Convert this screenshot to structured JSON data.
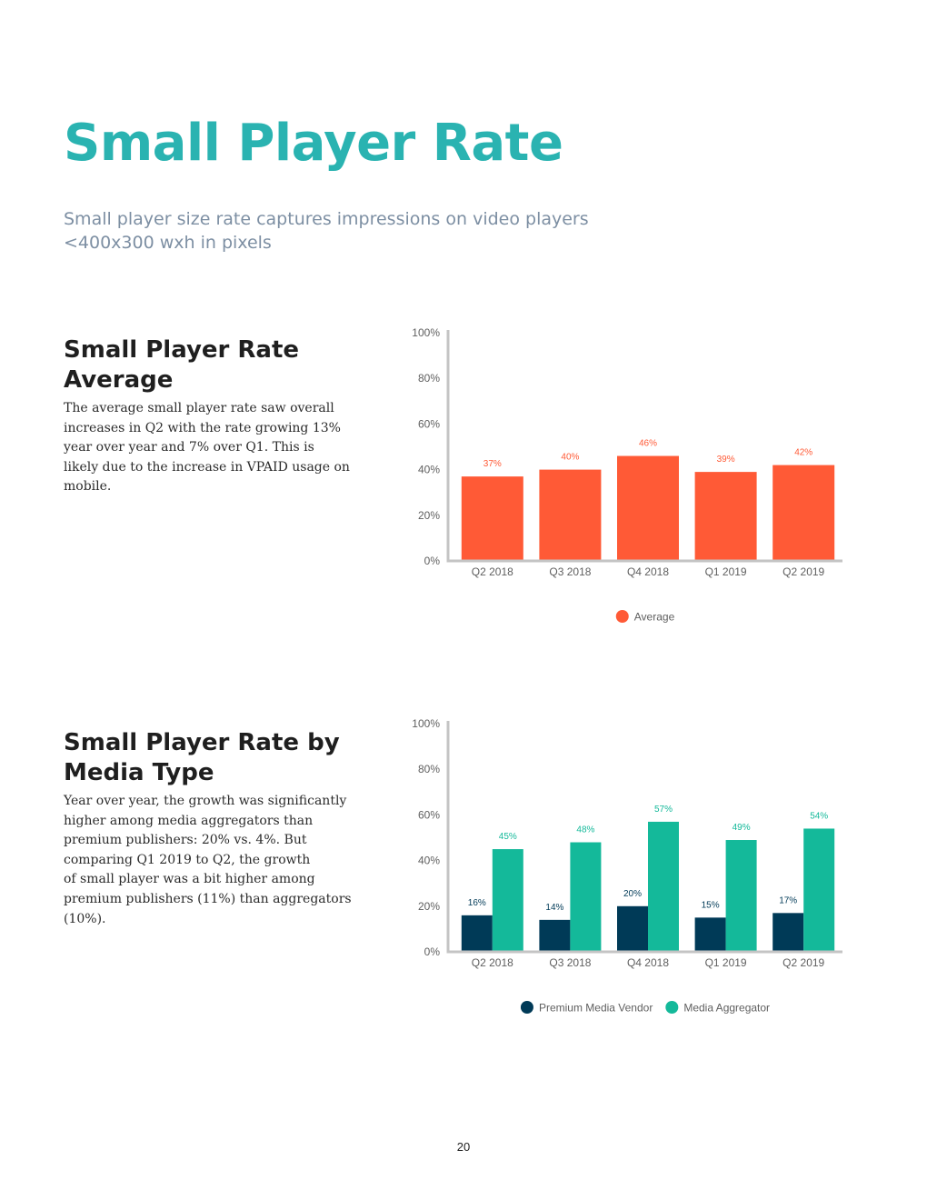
{
  "page": {
    "title": "Small Player Rate",
    "subtitle_lines": [
      "Small player size rate captures impressions on video players",
      "<400x300 wxh in pixels"
    ],
    "page_number": "20"
  },
  "sections": [
    {
      "heading_lines": [
        "Small Player Rate",
        "Average"
      ],
      "body_lines": [
        "The average small player rate saw overall",
        "increases in Q2 with the rate growing 13%",
        "year over year and 7% over Q1. This is",
        "likely due to the increase in VPAID usage on",
        "mobile."
      ]
    },
    {
      "heading_lines": [
        "Small Player Rate by",
        "Media Type"
      ],
      "body_lines": [
        "Year over year, the growth was significantly",
        "higher among media aggregators than",
        "premium publishers: 20% vs. 4%. But",
        "comparing Q1 2019 to Q2, the growth",
        "of small player was a bit higher among",
        "premium publishers (11%) than aggregators",
        "(10%)."
      ]
    }
  ],
  "chart_data": [
    {
      "type": "bar",
      "title": "",
      "xlabel": "",
      "ylabel": "",
      "categories": [
        "Q2 2018",
        "Q3 2018",
        "Q4 2018",
        "Q1 2019",
        "Q2 2019"
      ],
      "yticks": [
        "0%",
        "20%",
        "40%",
        "60%",
        "80%",
        "100%"
      ],
      "ylim": [
        0,
        100
      ],
      "grid": false,
      "legend_position": "bottom",
      "series": [
        {
          "name": "Average",
          "color": "#ff5a36",
          "values": [
            37,
            40,
            46,
            39,
            42
          ],
          "labels": [
            "37%",
            "40%",
            "46%",
            "39%",
            "42%"
          ]
        }
      ]
    },
    {
      "type": "bar",
      "title": "",
      "xlabel": "",
      "ylabel": "",
      "categories": [
        "Q2 2018",
        "Q3 2018",
        "Q4 2018",
        "Q1 2019",
        "Q2 2019"
      ],
      "yticks": [
        "0%",
        "20%",
        "40%",
        "60%",
        "80%",
        "100%"
      ],
      "ylim": [
        0,
        100
      ],
      "grid": false,
      "legend_position": "bottom",
      "series": [
        {
          "name": "Premium Media Vendor",
          "color": "#003a57",
          "values": [
            16,
            14,
            20,
            15,
            17
          ],
          "labels": [
            "16%",
            "14%",
            "20%",
            "15%",
            "17%"
          ]
        },
        {
          "name": "Media Aggregator",
          "color": "#14b99a",
          "values": [
            45,
            48,
            57,
            49,
            54
          ],
          "labels": [
            "45%",
            "48%",
            "57%",
            "49%",
            "54%"
          ]
        }
      ]
    }
  ]
}
